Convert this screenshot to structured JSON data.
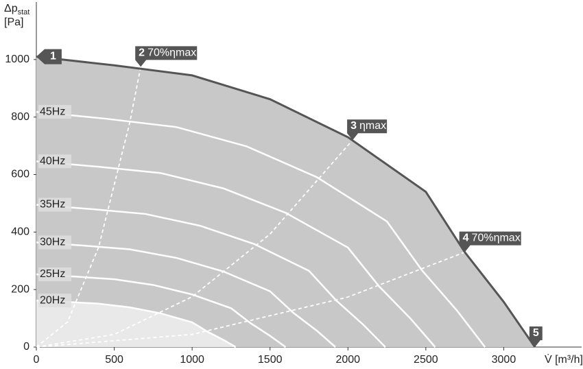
{
  "chart_data": {
    "type": "line",
    "y_label": {
      "symbol": "Δp",
      "subscript": "stat",
      "unit": "[Pa]"
    },
    "x_label": "V̇ [m³/h]",
    "xlim": [
      0,
      3500
    ],
    "ylim": [
      0,
      1200
    ],
    "xticks": [
      0,
      500,
      1000,
      1500,
      2000,
      2500,
      3000
    ],
    "yticks": [
      0,
      200,
      400,
      600,
      800,
      1000
    ],
    "grid": false,
    "area_color": "#c8c8c8",
    "low_area_color": "#e9e9e9",
    "max_curve_color": "#555555",
    "curve_color": "#ffffff",
    "max_curve": {
      "x": [
        0,
        500,
        1000,
        1500,
        2000,
        2500,
        2750,
        3000,
        3200
      ],
      "values": [
        1010,
        980,
        945,
        862,
        730,
        540,
        330,
        157,
        0
      ]
    },
    "curves": [
      {
        "name": "45Hz",
        "x": [
          0,
          450,
          900,
          1350,
          1800,
          2250,
          2475,
          2700,
          2880
        ],
        "values": [
          818,
          794,
          765,
          698,
          591,
          437,
          267,
          127,
          0
        ]
      },
      {
        "name": "40Hz",
        "x": [
          0,
          400,
          800,
          1200,
          1600,
          2000,
          2200,
          2400,
          2560
        ],
        "values": [
          646,
          627,
          605,
          552,
          467,
          346,
          211,
          100,
          0
        ]
      },
      {
        "name": "35Hz",
        "x": [
          0,
          350,
          700,
          1050,
          1400,
          1750,
          1925,
          2100,
          2240
        ],
        "values": [
          495,
          480,
          463,
          422,
          358,
          265,
          162,
          77,
          0
        ]
      },
      {
        "name": "30Hz",
        "x": [
          0,
          300,
          600,
          900,
          1200,
          1500,
          1650,
          1800,
          1920
        ],
        "values": [
          364,
          353,
          340,
          310,
          263,
          194,
          119,
          57,
          0
        ]
      },
      {
        "name": "25Hz",
        "x": [
          0,
          250,
          500,
          750,
          1000,
          1250,
          1375,
          1500,
          1600
        ],
        "values": [
          253,
          245,
          236,
          216,
          183,
          135,
          83,
          39,
          0
        ]
      },
      {
        "name": "20Hz",
        "x": [
          0,
          200,
          400,
          600,
          800,
          1000,
          1100,
          1200,
          1280
        ],
        "values": [
          162,
          157,
          151,
          138,
          117,
          86,
          53,
          25,
          0
        ]
      }
    ],
    "efficiency_lines": [
      {
        "x": [
          0,
          200,
          400,
          600,
          670
        ],
        "values": [
          0,
          87,
          348,
          782,
          975
        ]
      },
      {
        "x": [
          0,
          500,
          1000,
          1500,
          2030
        ],
        "values": [
          0,
          44,
          175,
          393,
          720
        ]
      },
      {
        "x": [
          0,
          1000,
          2000,
          2750
        ],
        "values": [
          0,
          44,
          174,
          330
        ]
      }
    ],
    "points": [
      {
        "id": "1",
        "x": 0,
        "y": 1010
      },
      {
        "id": "2",
        "label": "70%ηmax",
        "x": 670,
        "y": 975
      },
      {
        "id": "3",
        "label": "ηmax",
        "x": 2030,
        "y": 720
      },
      {
        "id": "4",
        "label": "70%ηmax",
        "x": 2750,
        "y": 330
      },
      {
        "id": "5",
        "x": 3200,
        "y": 0
      }
    ]
  }
}
